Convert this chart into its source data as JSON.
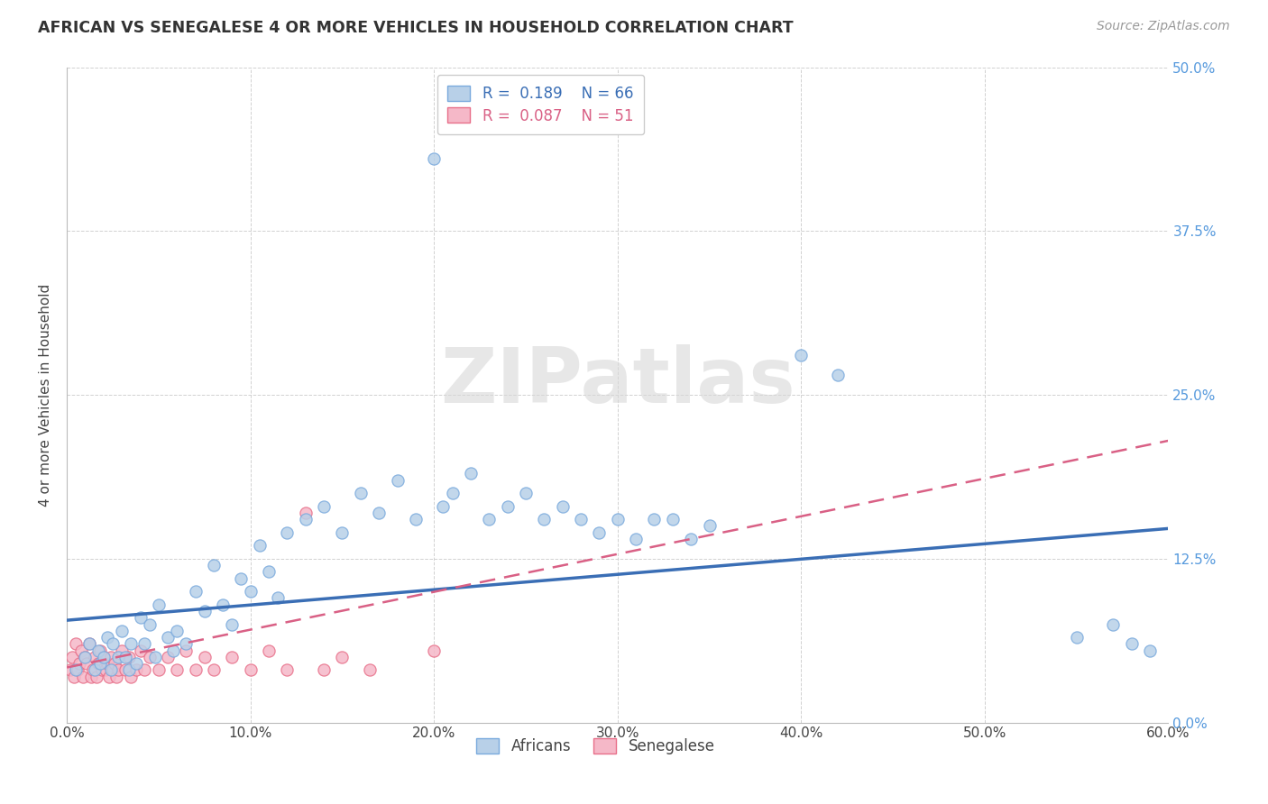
{
  "title": "AFRICAN VS SENEGALESE 4 OR MORE VEHICLES IN HOUSEHOLD CORRELATION CHART",
  "source": "Source: ZipAtlas.com",
  "ylabel": "4 or more Vehicles in Household",
  "xlim": [
    0,
    0.6
  ],
  "ylim": [
    0,
    0.5
  ],
  "xtick_labels": [
    "0.0%",
    "10.0%",
    "20.0%",
    "30.0%",
    "40.0%",
    "50.0%",
    "60.0%"
  ],
  "xtick_vals": [
    0.0,
    0.1,
    0.2,
    0.3,
    0.4,
    0.5,
    0.6
  ],
  "ytick_vals": [
    0.0,
    0.125,
    0.25,
    0.375,
    0.5
  ],
  "ytick_labels_right": [
    "0.0%",
    "12.5%",
    "25.0%",
    "37.5%",
    "50.0%"
  ],
  "african_color": "#b8d0e8",
  "senegalese_color": "#f5b8c8",
  "african_edge_color": "#7aaadd",
  "senegalese_edge_color": "#e8708a",
  "trendline_african_color": "#3a6eb5",
  "trendline_senegalese_color": "#d96085",
  "legend_african_label": "Africans",
  "legend_senegalese_label": "Senegalese",
  "R_african": 0.189,
  "N_african": 66,
  "R_senegalese": 0.087,
  "N_senegalese": 51,
  "watermark": "ZIPatlas",
  "african_x": [
    0.005,
    0.01,
    0.012,
    0.015,
    0.017,
    0.018,
    0.02,
    0.022,
    0.024,
    0.025,
    0.028,
    0.03,
    0.032,
    0.034,
    0.035,
    0.038,
    0.04,
    0.042,
    0.045,
    0.048,
    0.05,
    0.055,
    0.058,
    0.06,
    0.065,
    0.07,
    0.075,
    0.08,
    0.085,
    0.09,
    0.095,
    0.1,
    0.105,
    0.11,
    0.115,
    0.12,
    0.13,
    0.14,
    0.15,
    0.16,
    0.17,
    0.18,
    0.19,
    0.2,
    0.205,
    0.21,
    0.22,
    0.23,
    0.24,
    0.25,
    0.26,
    0.27,
    0.28,
    0.29,
    0.3,
    0.31,
    0.32,
    0.33,
    0.34,
    0.35,
    0.4,
    0.42,
    0.55,
    0.57,
    0.58,
    0.59
  ],
  "african_y": [
    0.04,
    0.05,
    0.06,
    0.04,
    0.055,
    0.045,
    0.05,
    0.065,
    0.04,
    0.06,
    0.05,
    0.07,
    0.05,
    0.04,
    0.06,
    0.045,
    0.08,
    0.06,
    0.075,
    0.05,
    0.09,
    0.065,
    0.055,
    0.07,
    0.06,
    0.1,
    0.085,
    0.12,
    0.09,
    0.075,
    0.11,
    0.1,
    0.135,
    0.115,
    0.095,
    0.145,
    0.155,
    0.165,
    0.145,
    0.175,
    0.16,
    0.185,
    0.155,
    0.43,
    0.165,
    0.175,
    0.19,
    0.155,
    0.165,
    0.175,
    0.155,
    0.165,
    0.155,
    0.145,
    0.155,
    0.14,
    0.155,
    0.155,
    0.14,
    0.15,
    0.28,
    0.265,
    0.065,
    0.075,
    0.06,
    0.055
  ],
  "senegalese_x": [
    0.002,
    0.003,
    0.004,
    0.005,
    0.006,
    0.007,
    0.008,
    0.009,
    0.01,
    0.011,
    0.012,
    0.013,
    0.014,
    0.015,
    0.016,
    0.017,
    0.018,
    0.019,
    0.02,
    0.021,
    0.022,
    0.023,
    0.024,
    0.025,
    0.026,
    0.027,
    0.028,
    0.03,
    0.032,
    0.034,
    0.035,
    0.038,
    0.04,
    0.042,
    0.045,
    0.05,
    0.055,
    0.06,
    0.065,
    0.07,
    0.075,
    0.08,
    0.09,
    0.1,
    0.11,
    0.12,
    0.13,
    0.14,
    0.15,
    0.165,
    0.2
  ],
  "senegalese_y": [
    0.04,
    0.05,
    0.035,
    0.06,
    0.04,
    0.045,
    0.055,
    0.035,
    0.05,
    0.045,
    0.06,
    0.035,
    0.04,
    0.05,
    0.035,
    0.045,
    0.055,
    0.04,
    0.05,
    0.04,
    0.045,
    0.035,
    0.05,
    0.04,
    0.045,
    0.035,
    0.04,
    0.055,
    0.04,
    0.05,
    0.035,
    0.04,
    0.055,
    0.04,
    0.05,
    0.04,
    0.05,
    0.04,
    0.055,
    0.04,
    0.05,
    0.04,
    0.05,
    0.04,
    0.055,
    0.04,
    0.16,
    0.04,
    0.05,
    0.04,
    0.055
  ],
  "trendline_african_x0": 0.0,
  "trendline_african_x1": 0.6,
  "trendline_african_y0": 0.078,
  "trendline_african_y1": 0.148,
  "trendline_senegalese_x0": 0.0,
  "trendline_senegalese_x1": 0.6,
  "trendline_senegalese_y0": 0.042,
  "trendline_senegalese_y1": 0.215
}
